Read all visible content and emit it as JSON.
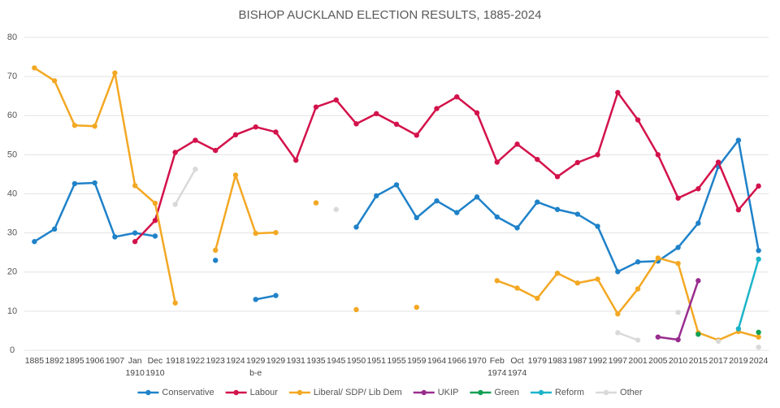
{
  "chart_data": {
    "type": "line",
    "title": "BISHOP AUCKLAND ELECTION RESULTS, 1885-2024",
    "categories": [
      "1885",
      "1892",
      "1895",
      "1906",
      "1907",
      "Jan 1910",
      "Dec 1910",
      "1918",
      "1922",
      "1923",
      "1924",
      "1929 b-e",
      "1929",
      "1931",
      "1935",
      "1945",
      "1950",
      "1951",
      "1955",
      "1959",
      "1964",
      "1966",
      "1970",
      "Feb 1974",
      "Oct 1974",
      "1979",
      "1983",
      "1987",
      "1992",
      "1997",
      "2001",
      "2005",
      "2010",
      "2015",
      "2017",
      "2019",
      "2024"
    ],
    "ylim": [
      0,
      80
    ],
    "yticks": [
      0,
      10,
      20,
      30,
      40,
      50,
      60,
      70,
      80
    ],
    "grid": true,
    "legend": "bottom",
    "series": [
      {
        "name": "Conservative",
        "color": "#1f82c9",
        "values": [
          27.8,
          31,
          42.6,
          42.8,
          29,
          30,
          29.2,
          null,
          null,
          23,
          null,
          13,
          14,
          null,
          null,
          null,
          31.5,
          39.5,
          42.3,
          33.9,
          38.2,
          35.2,
          39.2,
          34.1,
          31.3,
          37.9,
          36,
          34.8,
          31.7,
          20.1,
          22.6,
          22.8,
          26.3,
          32.5,
          47,
          53.7,
          25.5
        ]
      },
      {
        "name": "Labour",
        "color": "#d3124b",
        "values": [
          null,
          null,
          null,
          null,
          null,
          27.8,
          33.2,
          50.6,
          53.7,
          51.1,
          55.1,
          57.1,
          55.8,
          48.6,
          62.2,
          64,
          57.9,
          60.5,
          57.8,
          55,
          61.8,
          64.8,
          60.7,
          48.1,
          52.7,
          48.8,
          44.4,
          48,
          50,
          65.9,
          58.9,
          50,
          38.9,
          41.3,
          48.1,
          35.9,
          42
        ]
      },
      {
        "name": "Liberal/ SDP/ Lib Dem",
        "color": "#f3a823",
        "values": [
          72.2,
          68.9,
          57.5,
          57.3,
          70.9,
          42.1,
          37.6,
          12.1,
          null,
          25.6,
          44.8,
          29.9,
          30.1,
          null,
          37.7,
          null,
          10.4,
          null,
          null,
          11,
          null,
          null,
          null,
          17.8,
          15.9,
          13.3,
          19.7,
          17.2,
          18.2,
          9.3,
          15.7,
          23.6,
          22.2,
          4.5,
          2.6,
          4.8,
          3.4
        ]
      },
      {
        "name": "UKIP",
        "color": "#992d8f",
        "values": [
          null,
          null,
          null,
          null,
          null,
          null,
          null,
          null,
          null,
          null,
          null,
          null,
          null,
          null,
          null,
          null,
          null,
          null,
          null,
          null,
          null,
          null,
          null,
          null,
          null,
          null,
          null,
          null,
          null,
          null,
          null,
          3.4,
          2.7,
          17.8,
          null,
          null,
          null
        ]
      },
      {
        "name": "Green",
        "color": "#10a055",
        "values": [
          null,
          null,
          null,
          null,
          null,
          null,
          null,
          null,
          null,
          null,
          null,
          null,
          null,
          null,
          null,
          null,
          null,
          null,
          null,
          null,
          null,
          null,
          null,
          null,
          null,
          null,
          null,
          null,
          null,
          null,
          null,
          null,
          null,
          4.1,
          null,
          null,
          4.6
        ]
      },
      {
        "name": "Reform",
        "color": "#1cb4c9",
        "values": [
          null,
          null,
          null,
          null,
          null,
          null,
          null,
          null,
          null,
          null,
          null,
          null,
          null,
          null,
          null,
          null,
          null,
          null,
          null,
          null,
          null,
          null,
          null,
          null,
          null,
          null,
          null,
          null,
          null,
          null,
          null,
          null,
          null,
          null,
          null,
          5.5,
          23.3
        ]
      },
      {
        "name": "Other",
        "color": "#d9d9d9",
        "values": [
          null,
          null,
          null,
          null,
          null,
          null,
          null,
          37.3,
          46.3,
          null,
          null,
          null,
          null,
          null,
          null,
          36,
          null,
          null,
          null,
          null,
          null,
          null,
          null,
          null,
          null,
          null,
          null,
          null,
          null,
          4.5,
          2.6,
          null,
          9.7,
          null,
          2.3,
          null,
          0.8
        ]
      }
    ]
  }
}
